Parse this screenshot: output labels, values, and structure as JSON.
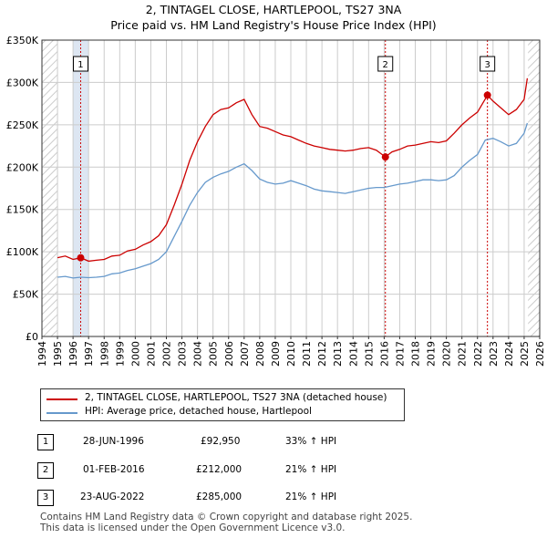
{
  "title_line1": "2, TINTAGEL CLOSE, HARTLEPOOL, TS27 3NA",
  "title_line2": "Price paid vs. HM Land Registry's House Price Index (HPI)",
  "colors": {
    "property": "#cc0000",
    "hpi": "#6699cc",
    "shade": "#dde6f2",
    "grid": "#cccccc",
    "hatch": "#cccccc"
  },
  "chart_data": {
    "type": "line",
    "title": "2, TINTAGEL CLOSE, HARTLEPOOL, TS27 3NA - Price paid vs. HM Land Registry's House Price Index (HPI)",
    "xlabel": "",
    "ylabel": "",
    "xlim": [
      1994,
      2026
    ],
    "ylim": [
      0,
      350000
    ],
    "x_ticks": [
      "1994",
      "1995",
      "1996",
      "1997",
      "1998",
      "1999",
      "2000",
      "2001",
      "2002",
      "2003",
      "2004",
      "2005",
      "2006",
      "2007",
      "2008",
      "2009",
      "2010",
      "2011",
      "2012",
      "2013",
      "2014",
      "2015",
      "2016",
      "2017",
      "2018",
      "2019",
      "2020",
      "2021",
      "2022",
      "2023",
      "2024",
      "2025",
      "2026"
    ],
    "y_ticks": [
      {
        "value": 0,
        "label": "£0"
      },
      {
        "value": 50000,
        "label": "£50K"
      },
      {
        "value": 100000,
        "label": "£100K"
      },
      {
        "value": 150000,
        "label": "£150K"
      },
      {
        "value": 200000,
        "label": "£200K"
      },
      {
        "value": 250000,
        "label": "£250K"
      },
      {
        "value": 300000,
        "label": "£300K"
      },
      {
        "value": 350000,
        "label": "£350K"
      }
    ],
    "grid": true,
    "series": [
      {
        "name": "2, TINTAGEL CLOSE, HARTLEPOOL, TS27 3NA (detached house)",
        "color": "#cc0000",
        "x": [
          1995.0,
          1995.5,
          1996.0,
          1996.49,
          1997.0,
          1997.5,
          1998.0,
          1998.5,
          1999.0,
          1999.5,
          2000.0,
          2000.5,
          2001.0,
          2001.5,
          2002.0,
          2002.5,
          2003.0,
          2003.5,
          2004.0,
          2004.5,
          2005.0,
          2005.5,
          2006.0,
          2006.5,
          2007.0,
          2007.5,
          2008.0,
          2008.5,
          2009.0,
          2009.5,
          2010.0,
          2010.5,
          2011.0,
          2011.5,
          2012.0,
          2012.5,
          2013.0,
          2013.5,
          2014.0,
          2014.5,
          2015.0,
          2015.5,
          2016.08,
          2016.5,
          2017.0,
          2017.5,
          2018.0,
          2018.5,
          2019.0,
          2019.5,
          2020.0,
          2020.5,
          2021.0,
          2021.5,
          2022.0,
          2022.64,
          2023.0,
          2023.5,
          2024.0,
          2024.5,
          2025.0,
          2025.2
        ],
        "values": [
          93000,
          95000,
          91000,
          92950,
          89000,
          90000,
          91000,
          95000,
          96000,
          101000,
          103000,
          108000,
          112000,
          119000,
          132000,
          155000,
          180000,
          208000,
          230000,
          248000,
          262000,
          268000,
          270000,
          276000,
          280000,
          262000,
          248000,
          246000,
          242000,
          238000,
          236000,
          232000,
          228000,
          225000,
          223000,
          221000,
          220000,
          219000,
          220000,
          222000,
          223000,
          220000,
          212000,
          218000,
          221000,
          225000,
          226000,
          228000,
          230000,
          229000,
          231000,
          240000,
          250000,
          258000,
          265000,
          285000,
          278000,
          270000,
          262000,
          268000,
          280000,
          305000
        ]
      },
      {
        "name": "HPI: Average price, detached house, Hartlepool",
        "color": "#6699cc",
        "x": [
          1995.0,
          1995.5,
          1996.0,
          1996.5,
          1997.0,
          1997.5,
          1998.0,
          1998.5,
          1999.0,
          1999.5,
          2000.0,
          2000.5,
          2001.0,
          2001.5,
          2002.0,
          2002.5,
          2003.0,
          2003.5,
          2004.0,
          2004.5,
          2005.0,
          2005.5,
          2006.0,
          2006.5,
          2007.0,
          2007.5,
          2008.0,
          2008.5,
          2009.0,
          2009.5,
          2010.0,
          2010.5,
          2011.0,
          2011.5,
          2012.0,
          2012.5,
          2013.0,
          2013.5,
          2014.0,
          2014.5,
          2015.0,
          2015.5,
          2016.0,
          2016.5,
          2017.0,
          2017.5,
          2018.0,
          2018.5,
          2019.0,
          2019.5,
          2020.0,
          2020.5,
          2021.0,
          2021.5,
          2022.0,
          2022.5,
          2023.0,
          2023.5,
          2024.0,
          2024.5,
          2025.0,
          2025.2
        ],
        "values": [
          70000,
          71000,
          69000,
          70000,
          69500,
          70000,
          71000,
          74000,
          75000,
          78000,
          80000,
          83000,
          86000,
          91000,
          100000,
          118000,
          136000,
          155000,
          170000,
          182000,
          188000,
          192000,
          195000,
          200000,
          204000,
          196000,
          186000,
          182000,
          180000,
          181000,
          184000,
          181000,
          178000,
          174000,
          172000,
          171000,
          170000,
          169000,
          171000,
          173000,
          175000,
          176000,
          176000,
          178000,
          180000,
          181000,
          183000,
          185000,
          185000,
          184000,
          185000,
          190000,
          200000,
          208000,
          215000,
          232000,
          234000,
          230000,
          225000,
          228000,
          240000,
          252000
        ]
      }
    ],
    "sales": [
      {
        "label": "1",
        "x": 1996.49,
        "value": 92950
      },
      {
        "label": "2",
        "x": 2016.08,
        "value": 212000
      },
      {
        "label": "3",
        "x": 2022.64,
        "value": 285000
      }
    ]
  },
  "legend": {
    "property": "2, TINTAGEL CLOSE, HARTLEPOOL, TS27 3NA (detached house)",
    "hpi": "HPI: Average price, detached house, Hartlepool"
  },
  "sales_table": [
    {
      "num": "1",
      "date": "28-JUN-1996",
      "price": "£92,950",
      "hpi": "33% ↑ HPI"
    },
    {
      "num": "2",
      "date": "01-FEB-2016",
      "price": "£212,000",
      "hpi": "21% ↑ HPI"
    },
    {
      "num": "3",
      "date": "23-AUG-2022",
      "price": "£285,000",
      "hpi": "21% ↑ HPI"
    }
  ],
  "footer": {
    "line1": "Contains HM Land Registry data © Crown copyright and database right 2025.",
    "line2": "This data is licensed under the Open Government Licence v3.0."
  }
}
